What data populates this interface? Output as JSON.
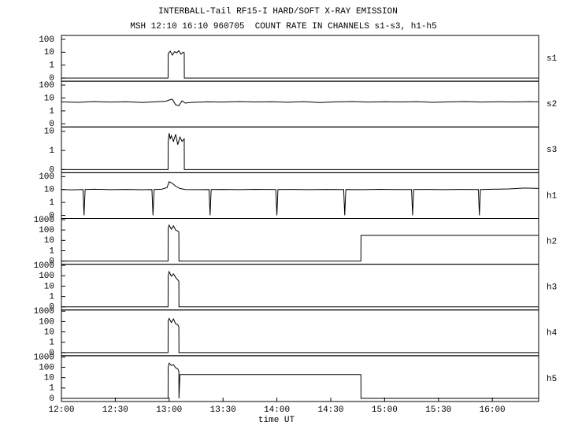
{
  "chart_data": [
    {
      "type": "line",
      "title": "INTERBALL-Tail RF15-I HARD/SOFT X-RAY EMISSION",
      "subtitle": "MSH 12:10 16:10 960705  COUNT RATE IN CHANNELS s1-s3, h1-h5",
      "ylabel": "s1",
      "yscale": "log",
      "color": "#000000",
      "ylim": [
        0,
        200
      ],
      "yticks": [
        0,
        1,
        10,
        100
      ],
      "x": [
        12.0,
        12.99,
        12.991,
        13.01,
        13.03,
        13.05,
        13.07,
        13.09,
        13.11,
        13.13,
        13.14,
        13.141,
        16.43
      ],
      "values": [
        0,
        0,
        8,
        12,
        6,
        11,
        9,
        13,
        7,
        10,
        9,
        0,
        0
      ]
    },
    {
      "type": "line",
      "ylabel": "s2",
      "yscale": "log",
      "color": "#000000",
      "ylim": [
        0,
        200
      ],
      "yticks": [
        0,
        1,
        10,
        100
      ],
      "x": [
        12.0,
        12.15,
        12.3,
        12.45,
        12.6,
        12.75,
        12.9,
        12.97,
        13.0,
        13.03,
        13.06,
        13.09,
        13.12,
        13.15,
        13.2,
        13.35,
        13.5,
        13.65,
        13.8,
        13.95,
        14.1,
        14.25,
        14.4,
        14.55,
        14.7,
        14.85,
        15.0,
        15.15,
        15.3,
        15.45,
        15.6,
        15.75,
        15.9,
        16.05,
        16.2,
        16.35,
        16.43
      ],
      "values": [
        5,
        4.6,
        5.3,
        4.8,
        5.1,
        4.5,
        5.2,
        5.6,
        7,
        8,
        3,
        2.5,
        6,
        4,
        4.5,
        5,
        4.8,
        5.3,
        4.9,
        5.1,
        4.7,
        5.2,
        4.4,
        5,
        5.3,
        4.8,
        5.1,
        4.9,
        5.2,
        4.6,
        5,
        5.3,
        4.8,
        5.1,
        4.9,
        5.2,
        5
      ]
    },
    {
      "type": "line",
      "ylabel": "s3",
      "yscale": "log",
      "color": "#000000",
      "ylim": [
        0,
        17
      ],
      "yticks": [
        0,
        1,
        10
      ],
      "x": [
        12.0,
        12.99,
        12.991,
        13.0,
        13.01,
        13.02,
        13.04,
        13.06,
        13.08,
        13.1,
        13.12,
        13.14,
        13.141,
        16.43
      ],
      "values": [
        0,
        0,
        3,
        8,
        4,
        6,
        3,
        7,
        2,
        5,
        3,
        4,
        0,
        0
      ]
    },
    {
      "type": "line",
      "ylabel": "h1",
      "yscale": "log",
      "color": "#000000",
      "ylim": [
        0,
        200
      ],
      "yticks": [
        0,
        1,
        10,
        100
      ],
      "x": [
        12.0,
        12.1,
        12.2,
        12.21,
        12.22,
        12.3,
        12.45,
        12.6,
        12.75,
        12.84,
        12.85,
        12.86,
        12.93,
        12.98,
        13.0,
        13.03,
        13.06,
        13.1,
        13.15,
        13.25,
        13.37,
        13.38,
        13.39,
        13.5,
        13.65,
        13.8,
        13.99,
        14.0,
        14.01,
        14.15,
        14.3,
        14.45,
        14.62,
        14.63,
        14.64,
        14.8,
        14.95,
        15.1,
        15.25,
        15.26,
        15.27,
        15.4,
        15.55,
        15.7,
        15.87,
        15.88,
        15.89,
        16.0,
        16.15,
        16.3,
        16.43
      ],
      "values": [
        10,
        9.5,
        10,
        0,
        10,
        10.5,
        9.8,
        10.2,
        9.6,
        10,
        0,
        10,
        10.5,
        14,
        40,
        30,
        18,
        12,
        10,
        9.7,
        10,
        0,
        10,
        10.2,
        9.8,
        10.3,
        9.9,
        0,
        10,
        10.1,
        9.7,
        10.2,
        10,
        0,
        10,
        9.8,
        10.3,
        9.9,
        10,
        0,
        10,
        10.2,
        9.8,
        10.1,
        10,
        0,
        10,
        10.4,
        11,
        13,
        12
      ]
    },
    {
      "type": "line",
      "ylabel": "h2",
      "yscale": "log",
      "color": "#000000",
      "ylim": [
        0,
        1300
      ],
      "yticks": [
        0,
        1,
        10,
        100,
        1000
      ],
      "x": [
        12.0,
        12.99,
        12.991,
        13.0,
        13.02,
        13.04,
        13.06,
        13.08,
        13.09,
        13.091,
        14.78,
        14.781,
        16.43
      ],
      "values": [
        0,
        0,
        150,
        300,
        120,
        250,
        100,
        80,
        60,
        0,
        0,
        30,
        30
      ]
    },
    {
      "type": "line",
      "ylabel": "h3",
      "yscale": "log",
      "color": "#000000",
      "ylim": [
        0,
        1300
      ],
      "yticks": [
        0,
        1,
        10,
        100,
        1000
      ],
      "x": [
        12.0,
        12.99,
        12.991,
        13.0,
        13.02,
        13.04,
        13.06,
        13.08,
        13.09,
        13.091,
        16.43
      ],
      "values": [
        0,
        0,
        100,
        250,
        90,
        150,
        70,
        40,
        30,
        0,
        0
      ]
    },
    {
      "type": "line",
      "ylabel": "h4",
      "yscale": "log",
      "color": "#000000",
      "ylim": [
        0,
        1300
      ],
      "yticks": [
        0,
        1,
        10,
        100,
        1000
      ],
      "x": [
        12.0,
        12.99,
        12.991,
        13.0,
        13.02,
        13.04,
        13.06,
        13.08,
        13.09,
        13.091,
        16.43
      ],
      "values": [
        0,
        0,
        120,
        200,
        80,
        180,
        60,
        50,
        30,
        0,
        0
      ]
    },
    {
      "type": "line",
      "ylabel": "h5",
      "yscale": "log",
      "color": "#000000",
      "ylim": [
        0,
        1300
      ],
      "yticks": [
        0,
        1,
        10,
        100,
        1000
      ],
      "x": [
        12.0,
        12.99,
        12.991,
        13.0,
        13.02,
        13.04,
        13.06,
        13.08,
        13.09,
        13.091,
        13.1,
        14.78,
        14.781,
        16.43
      ],
      "values": [
        0,
        0,
        100,
        250,
        150,
        180,
        90,
        70,
        40,
        0,
        20,
        20,
        0,
        0
      ],
      "xlabel": "time UT",
      "xlim": [
        12,
        16.43
      ],
      "xticks": [
        {
          "value": 12,
          "label": "12:00"
        },
        {
          "value": 12.5,
          "label": "12:30"
        },
        {
          "value": 13,
          "label": "13:00"
        },
        {
          "value": 13.5,
          "label": "13:30"
        },
        {
          "value": 14,
          "label": "14:00"
        },
        {
          "value": 14.5,
          "label": "14:30"
        },
        {
          "value": 15,
          "label": "15:00"
        },
        {
          "value": 15.5,
          "label": "15:30"
        },
        {
          "value": 16,
          "label": "16:00"
        }
      ]
    }
  ]
}
